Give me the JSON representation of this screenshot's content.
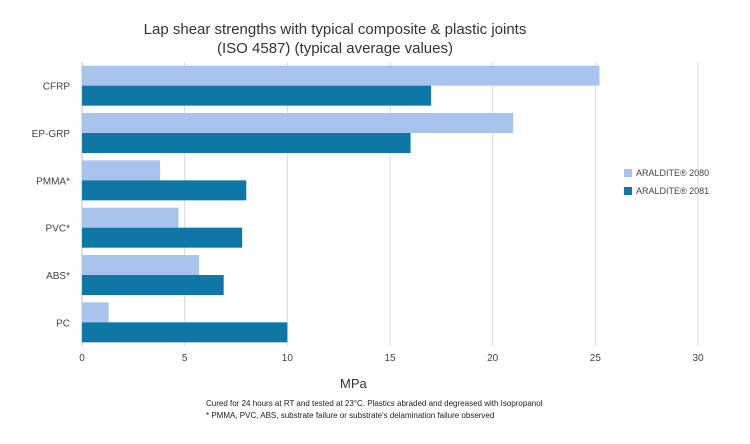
{
  "chart_data": {
    "type": "bar",
    "orientation": "horizontal",
    "title_line1": "Lap shear strengths with typical composite & plastic joints",
    "title_line2": "(ISO 4587) (typical average values)",
    "xlabel": "MPa",
    "ylabel": "",
    "xlim": [
      0,
      30
    ],
    "xticks": [
      0,
      5,
      10,
      15,
      20,
      25,
      30
    ],
    "grid": true,
    "legend_position": "right",
    "categories": [
      "CFRP",
      "EP-GRP",
      "PMMA*",
      "PVC*",
      "ABS*",
      "PC"
    ],
    "series": [
      {
        "name": "ARALDITE® 2080",
        "color": "#a9c4ec",
        "values": [
          25.2,
          21.0,
          3.8,
          4.7,
          5.7,
          1.3
        ]
      },
      {
        "name": "ARALDITE® 2081",
        "color": "#0e77a5",
        "values": [
          17.0,
          16.0,
          8.0,
          7.8,
          6.9,
          10.0
        ]
      }
    ],
    "notes": [
      "Cured for 24 hours at RT and tested at 23°C. Plastics abraded and degreased with Isopropanol",
      "* PMMA, PVC, ABS, substrate failure or substrate's delamination failure observed"
    ]
  }
}
